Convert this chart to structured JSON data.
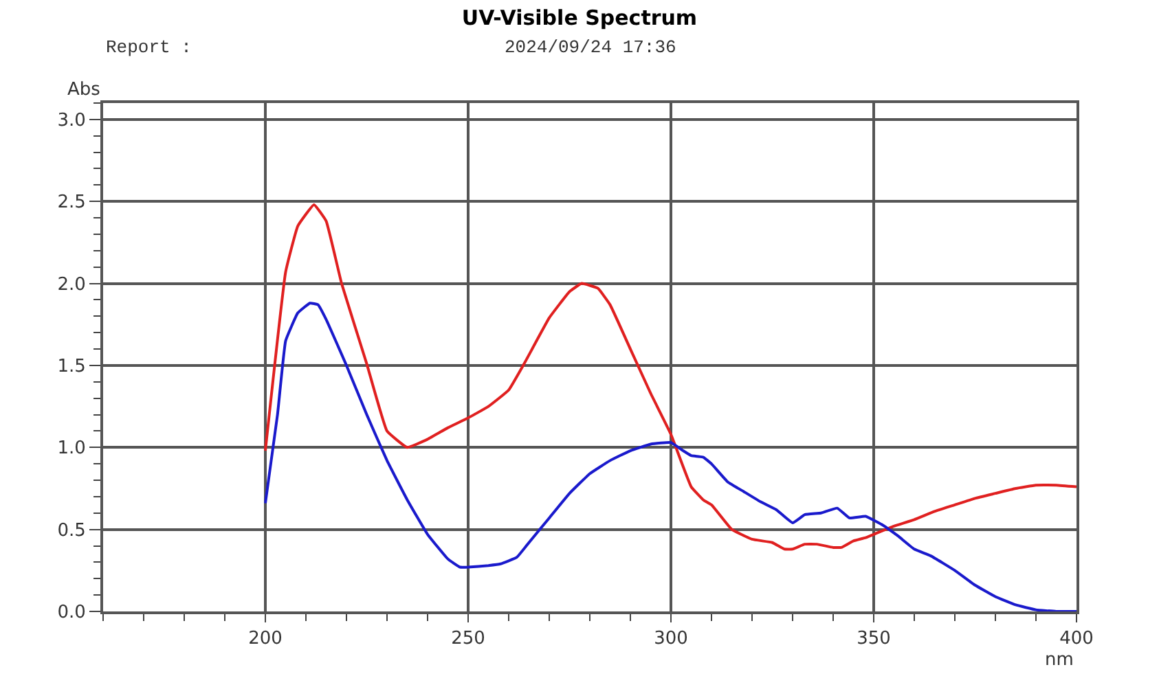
{
  "chart_data": {
    "type": "line",
    "title": "UV-Visible Spectrum",
    "xlabel": "nm",
    "ylabel": "Abs",
    "annotations": [
      "Report :",
      "2024/09/24 17:36"
    ],
    "xlim": [
      160,
      400
    ],
    "xticks": [
      200,
      250,
      300,
      350,
      400
    ],
    "ylim": [
      0,
      3.1
    ],
    "yticks": [
      {
        "value": 0,
        "label": "0.0"
      },
      0.5,
      {
        "value": 1,
        "label": "1.0"
      },
      1.5,
      {
        "value": 2,
        "label": "2.0"
      },
      2.5,
      {
        "value": 3,
        "label": "3.0"
      }
    ],
    "grid": true,
    "marker": "none",
    "line_style": "solid",
    "series": [
      {
        "color": "#e02020",
        "x": [
          200,
          205,
          208,
          212,
          215,
          218.8,
          225,
          230,
          235,
          240,
          245,
          250,
          255,
          260,
          263.8,
          270,
          275,
          278,
          282,
          285,
          290,
          295,
          300,
          305,
          308,
          310,
          315,
          320,
          325,
          328,
          330,
          333,
          336,
          340,
          342,
          345,
          348,
          350,
          355,
          360,
          365,
          370,
          375,
          380,
          385,
          390,
          395,
          400
        ],
        "values": [
          0.98,
          2.07,
          2.35,
          2.48,
          2.38,
          2.0,
          1.51,
          1.1,
          1.0,
          1.05,
          1.12,
          1.18,
          1.25,
          1.35,
          1.51,
          1.79,
          1.95,
          2.0,
          1.97,
          1.87,
          1.6,
          1.33,
          1.08,
          0.76,
          0.68,
          0.65,
          0.5,
          0.44,
          0.42,
          0.38,
          0.38,
          0.41,
          0.41,
          0.39,
          0.39,
          0.43,
          0.45,
          0.47,
          0.52,
          0.56,
          0.61,
          0.65,
          0.69,
          0.72,
          0.75,
          0.77,
          0.77,
          0.76
        ]
      },
      {
        "color": "#1a1acc",
        "x": [
          200,
          203,
          205,
          208,
          211,
          213,
          215,
          220,
          225,
          230,
          235,
          240,
          245,
          248,
          250,
          255,
          258,
          262,
          265,
          270,
          275,
          280,
          285,
          290,
          295,
          300,
          303,
          305,
          308,
          310,
          314,
          318,
          322,
          326,
          330,
          333,
          337,
          341,
          344,
          348,
          352,
          356,
          360,
          364,
          370,
          375,
          380,
          385,
          390,
          395,
          400
        ],
        "values": [
          0.66,
          1.2,
          1.65,
          1.82,
          1.88,
          1.87,
          1.78,
          1.5,
          1.2,
          0.92,
          0.68,
          0.47,
          0.32,
          0.27,
          0.27,
          0.28,
          0.29,
          0.33,
          0.42,
          0.57,
          0.72,
          0.84,
          0.92,
          0.98,
          1.02,
          1.03,
          0.98,
          0.95,
          0.94,
          0.9,
          0.79,
          0.73,
          0.67,
          0.62,
          0.54,
          0.59,
          0.6,
          0.63,
          0.57,
          0.58,
          0.53,
          0.46,
          0.38,
          0.34,
          0.25,
          0.16,
          0.09,
          0.04,
          0.01,
          0.0,
          0.0
        ]
      }
    ]
  }
}
